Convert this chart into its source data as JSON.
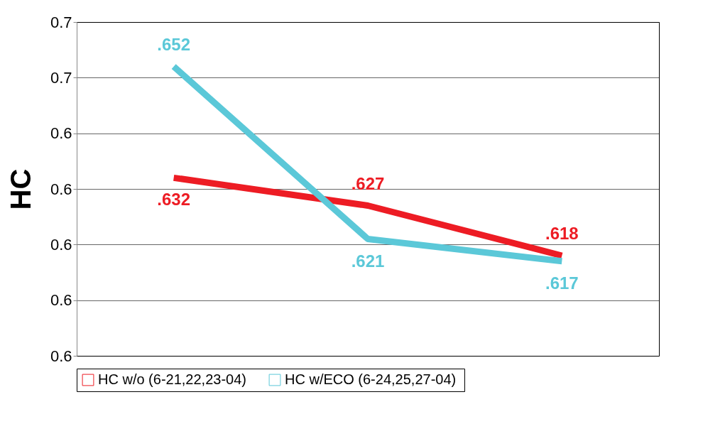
{
  "chart_data": {
    "type": "line",
    "ylabel": "HC",
    "categories": [
      null,
      null,
      null
    ],
    "series": [
      {
        "name": "HC w/o (6-21,22,23-04)",
        "color": "#ed1c24",
        "values": [
          0.632,
          0.627,
          0.618
        ],
        "value_labels": [
          ".632",
          ".627",
          ".618"
        ]
      },
      {
        "name": "HC  w/ECO (6-24,25,27-04)",
        "color": "#5bc8d8",
        "values": [
          0.652,
          0.621,
          0.617
        ],
        "value_labels": [
          ".652",
          ".621",
          ".617"
        ]
      }
    ],
    "ylim": [
      0.6,
      0.66
    ],
    "yticks": [
      {
        "value": 0.6,
        "label": "0.6"
      },
      {
        "value": 0.61,
        "label": "0.6"
      },
      {
        "value": 0.62,
        "label": "0.6"
      },
      {
        "value": 0.63,
        "label": "0.6"
      },
      {
        "value": 0.64,
        "label": "0.6"
      },
      {
        "value": 0.65,
        "label": "0.7"
      },
      {
        "value": 0.66,
        "label": "0.7"
      }
    ],
    "grid": "y",
    "legend": "bottom",
    "tick_labels": "y",
    "line_style": "solid",
    "marker": "none"
  }
}
